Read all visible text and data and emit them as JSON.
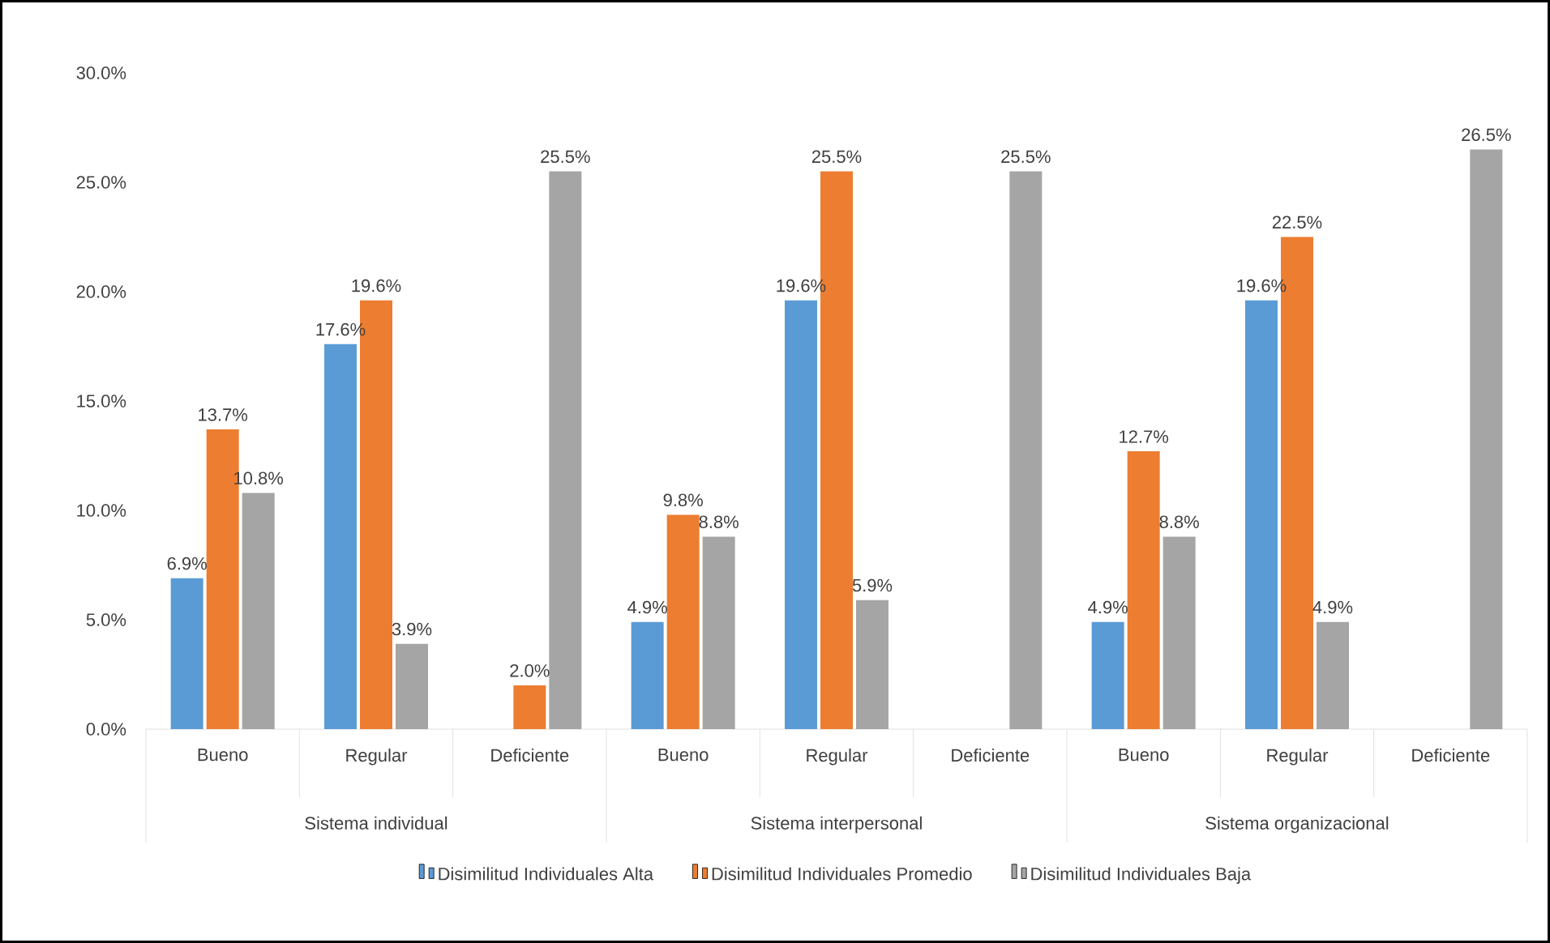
{
  "chart_data": {
    "type": "bar",
    "categories": [
      "Bueno",
      "Regular",
      "Deficiente",
      "Bueno",
      "Regular",
      "Deficiente",
      "Bueno",
      "Regular",
      "Deficiente"
    ],
    "annotations": [
      "Sistema individual",
      "Sistema interpersonal",
      "Sistema organizacional"
    ],
    "series": [
      {
        "name": "Disimilitud Individuales Alta",
        "color": "#5b9bd5",
        "values": [
          6.9,
          17.6,
          null,
          4.9,
          19.6,
          null,
          4.9,
          19.6,
          null
        ],
        "value_labels": [
          "6.9%",
          "17.6%",
          null,
          "4.9%",
          "19.6%",
          null,
          "4.9%",
          "19.6%",
          null
        ]
      },
      {
        "name": "Disimilitud Individuales Promedio",
        "color": "#ed7d31",
        "values": [
          13.7,
          19.6,
          2.0,
          9.8,
          25.5,
          null,
          12.7,
          22.5,
          null
        ],
        "value_labels": [
          "13.7%",
          "19.6%",
          "2.0%",
          "9.8%",
          "25.5%",
          null,
          "12.7%",
          "22.5%",
          null
        ]
      },
      {
        "name": "Disimilitud Individuales Baja",
        "color": "#a5a5a5",
        "values": [
          10.8,
          3.9,
          25.5,
          8.8,
          5.9,
          25.5,
          8.8,
          4.9,
          26.5
        ],
        "value_labels": [
          "10.8%",
          "3.9%",
          "25.5%",
          "8.8%",
          "5.9%",
          "25.5%",
          "8.8%",
          "4.9%",
          "26.5%"
        ]
      }
    ],
    "ylim": [
      0,
      30
    ],
    "yticks": [
      {
        "value": 0,
        "label": "0.0%"
      },
      {
        "value": 5,
        "label": "5.0%"
      },
      {
        "value": 10,
        "label": "10.0%"
      },
      {
        "value": 15,
        "label": "15.0%"
      },
      {
        "value": 20,
        "label": "20.0%"
      },
      {
        "value": 25,
        "label": "25.0%"
      },
      {
        "value": 30,
        "label": "30.0%"
      }
    ],
    "legend": "bottom"
  }
}
